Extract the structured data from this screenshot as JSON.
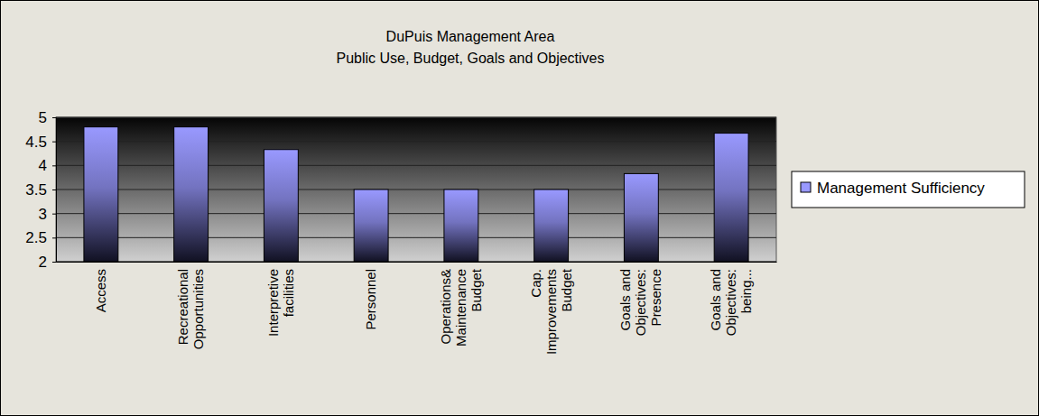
{
  "chart_data": {
    "type": "bar",
    "title": "DuPuis Management Area",
    "subtitle": "Public Use, Budget, Goals and Objectives",
    "categories": [
      "Access",
      "Recreational Opportunities",
      "Interpretive facilities",
      "Personnel",
      "Operations& Maintenance Budget",
      "Cap. Improvements Budget",
      "Goals and Objectives: Presence",
      "Goals and Objectives: being..."
    ],
    "series": [
      {
        "name": "Management Sufficiency",
        "color": "#9999ff",
        "values": [
          4.8,
          4.8,
          4.33,
          3.5,
          3.5,
          3.5,
          3.83,
          4.67
        ]
      }
    ],
    "ylim": [
      2,
      5
    ],
    "yticks": [
      2,
      2.5,
      3,
      3.5,
      4,
      4.5,
      5
    ],
    "grid": true,
    "legend": "right"
  }
}
